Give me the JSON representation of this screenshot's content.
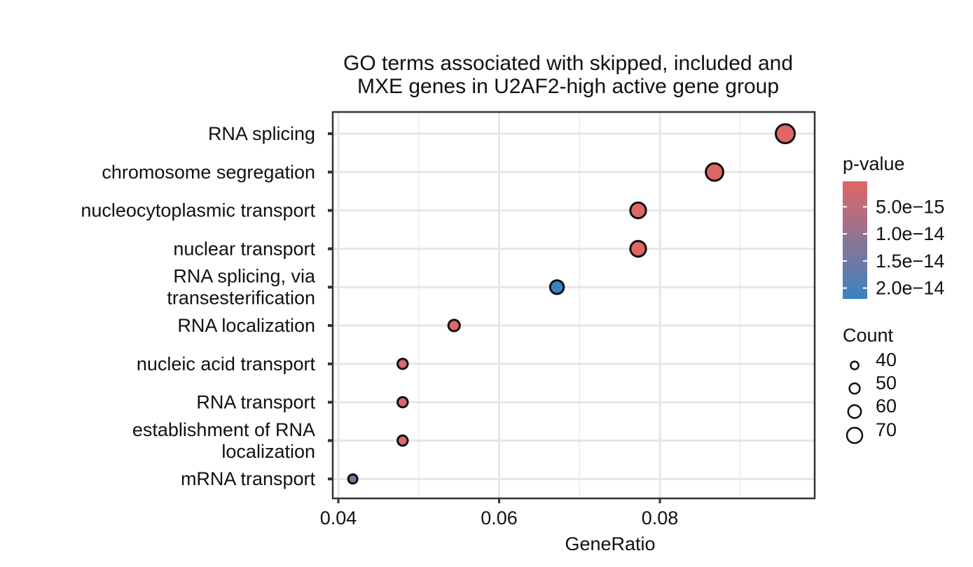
{
  "chart_data": {
    "type": "scatter",
    "title": [
      "GO terms associated with skipped, included and",
      "MXE genes in U2AF2-high active gene group"
    ],
    "xlabel": "GeneRatio",
    "ylabel": "",
    "xlim": [
      0.039,
      0.098
    ],
    "xticks": [
      0.04,
      0.06,
      0.08
    ],
    "xtick_labels": [
      "0.04",
      "0.06",
      "0.08"
    ],
    "grid": true,
    "terms": [
      {
        "label": [
          "RNA splicing"
        ],
        "gene_ratio": 0.0956,
        "p_value": 3e-16,
        "count": 70
      },
      {
        "label": [
          "chromosome segregation"
        ],
        "gene_ratio": 0.0868,
        "p_value": 4e-16,
        "count": 64
      },
      {
        "label": [
          "nucleocytoplasmic transport"
        ],
        "gene_ratio": 0.0773,
        "p_value": 5e-16,
        "count": 57
      },
      {
        "label": [
          "nuclear transport"
        ],
        "gene_ratio": 0.0773,
        "p_value": 5e-16,
        "count": 57
      },
      {
        "label": [
          "RNA splicing, via",
          "transesterification"
        ],
        "gene_ratio": 0.0672,
        "p_value": 2.2e-14,
        "count": 49
      },
      {
        "label": [
          "RNA localization"
        ],
        "gene_ratio": 0.0544,
        "p_value": 1e-15,
        "count": 40
      },
      {
        "label": [
          "nucleic acid transport"
        ],
        "gene_ratio": 0.048,
        "p_value": 1e-15,
        "count": 35
      },
      {
        "label": [
          "RNA transport"
        ],
        "gene_ratio": 0.048,
        "p_value": 1e-15,
        "count": 35
      },
      {
        "label": [
          "establishment of RNA",
          "localization"
        ],
        "gene_ratio": 0.048,
        "p_value": 1e-15,
        "count": 35
      },
      {
        "label": [
          "mRNA transport"
        ],
        "gene_ratio": 0.0418,
        "p_value": 1.45e-14,
        "count": 31
      }
    ],
    "color_legend": {
      "title": "p-value",
      "range": [
        3e-16,
        2.2e-14
      ],
      "breaks": [
        5e-15,
        1e-14,
        1.5e-14,
        2e-14
      ],
      "labels": [
        "5.0e−15",
        "1.0e−14",
        "1.5e−14",
        "2.0e−14"
      ],
      "low_color": "#E06666",
      "high_color": "#3A82C2"
    },
    "size_legend": {
      "title": "Count",
      "values": [
        40,
        50,
        60,
        70
      ],
      "labels": [
        "40",
        "50",
        "60",
        "70"
      ]
    },
    "legend_position": "right"
  }
}
